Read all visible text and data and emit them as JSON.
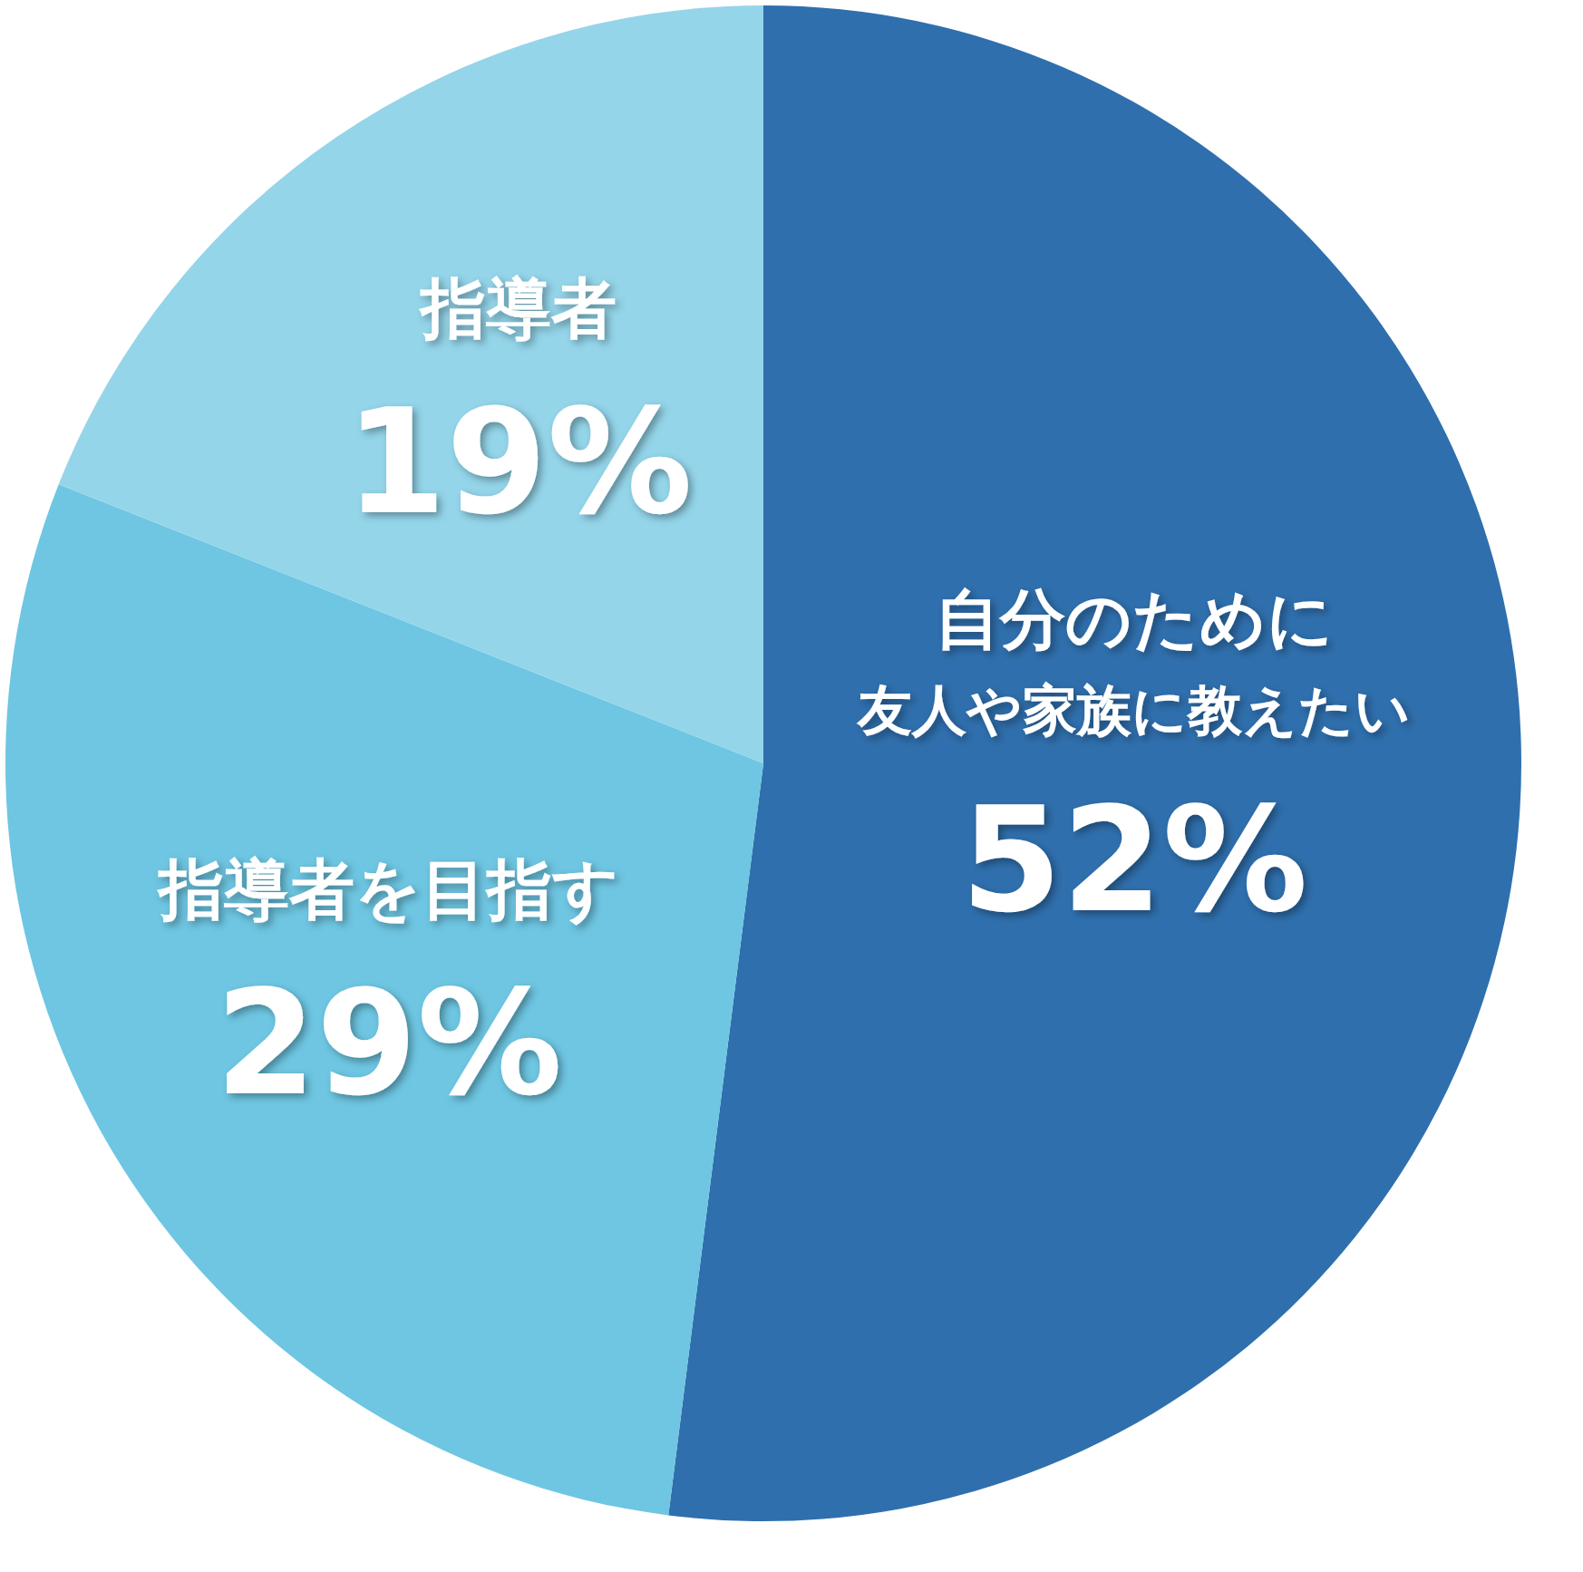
{
  "chart_data": {
    "type": "pie",
    "categories": [
      "自分のために友人や家族に教えたい",
      "指導者を目指す",
      "指導者"
    ],
    "values": [
      52,
      29,
      19
    ],
    "value_labels": [
      "52%",
      "29%",
      "19%"
    ],
    "colors": [
      "#2f6fad",
      "#6ec6e2",
      "#94d5ea"
    ]
  }
}
